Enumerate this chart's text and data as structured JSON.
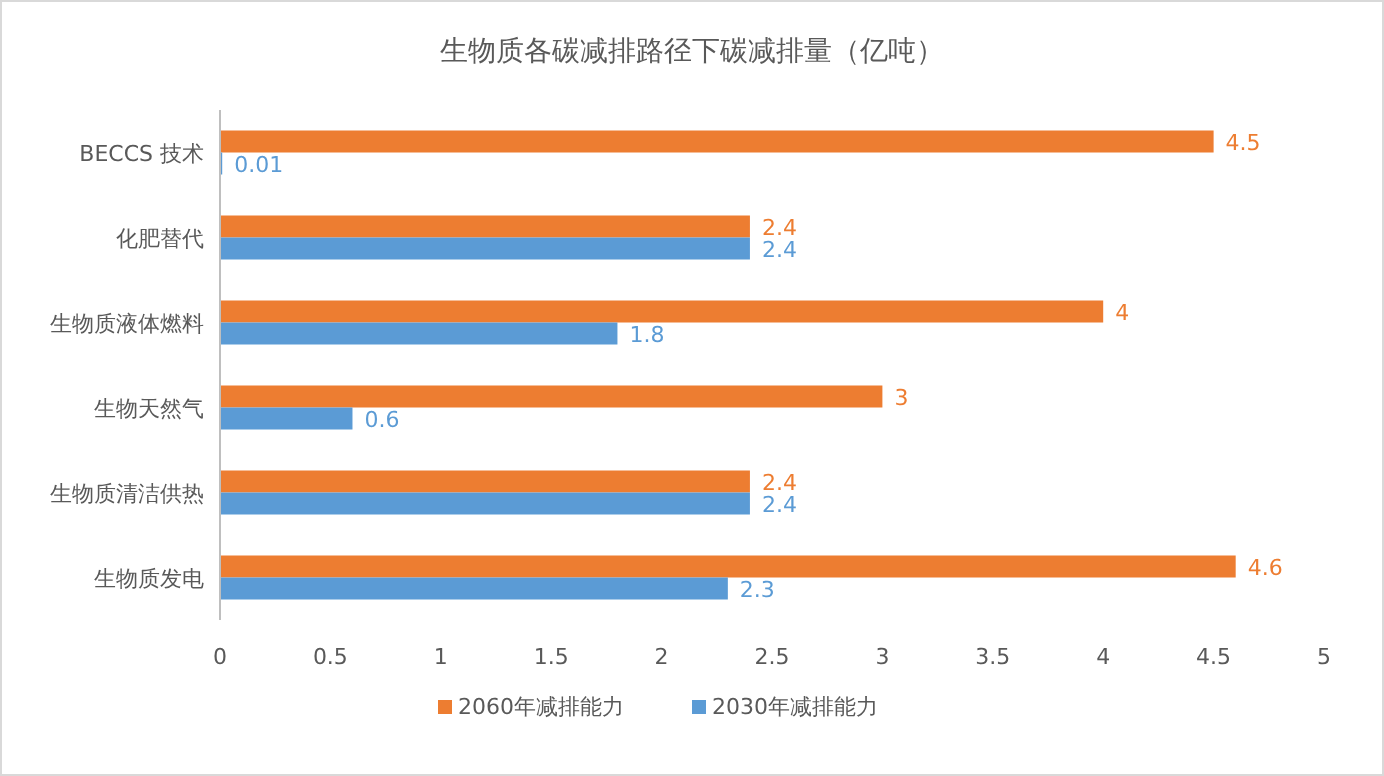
{
  "chart_data": {
    "type": "bar",
    "orientation": "horizontal",
    "title": "生物质各碳减排路径下碳减排量（亿吨）",
    "categories": [
      "BECCS 技术",
      "化肥替代",
      "生物质液体燃料",
      "生物天然气",
      "生物质清洁供热",
      "生物质发电"
    ],
    "series": [
      {
        "name": "2060年减排能力",
        "color": "#ed7d31",
        "values": [
          4.5,
          2.4,
          4,
          3,
          2.4,
          4.6
        ]
      },
      {
        "name": "2030年减排能力",
        "color": "#5b9bd5",
        "values": [
          0.01,
          2.4,
          1.8,
          0.6,
          2.4,
          2.3
        ]
      }
    ],
    "xlim": [
      0,
      5
    ],
    "xticks": [
      0,
      0.5,
      1,
      1.5,
      2,
      2.5,
      3,
      3.5,
      4,
      4.5,
      5
    ],
    "data_labels": true,
    "legend": "bottom"
  }
}
